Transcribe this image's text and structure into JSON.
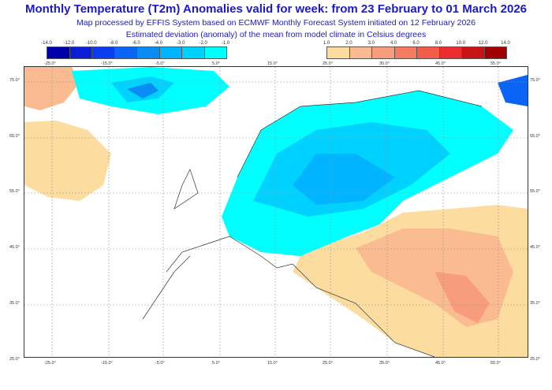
{
  "title": "Monthly Temperature (T2m) Anomalies valid for week: from 23 February to 01 March 2026",
  "subtitle1": "Map processed by EFFIS System based on ECMWF Monthly Forecast System initiated on 12 February 2026",
  "subtitle2": "Estimated deviation (anomaly) of the mean from model climate in Celsius degrees",
  "legend_cold": {
    "labels": [
      "-14.0",
      "-12.0",
      "-10.0",
      "-8.0",
      "-6.0",
      "-4.0",
      "-3.0",
      "-2.0",
      "-1.0"
    ],
    "colors": [
      "#0000a8",
      "#0a1ed6",
      "#0a3cf0",
      "#0a64f5",
      "#0a8cf5",
      "#00b4ff",
      "#00d2ff",
      "#00ffff"
    ]
  },
  "legend_warm": {
    "labels": [
      "1.0",
      "2.0",
      "3.0",
      "4.0",
      "6.0",
      "8.0",
      "10.0",
      "12.0",
      "14.0"
    ],
    "colors": [
      "#fddca0",
      "#f9bb8f",
      "#f89d7c",
      "#f57c62",
      "#f25c48",
      "#eb2d2d",
      "#c81414",
      "#a00000"
    ]
  },
  "lon_labels": [
    "-25.0°",
    "-15.0°",
    "-5.0°",
    "5.0°",
    "15.0°",
    "25.0°",
    "35.0°",
    "45.0°",
    "55.0°"
  ],
  "lat_labels": [
    "75.0°",
    "65.0°",
    "55.0°",
    "45.0°",
    "35.0°",
    "25.0°"
  ]
}
